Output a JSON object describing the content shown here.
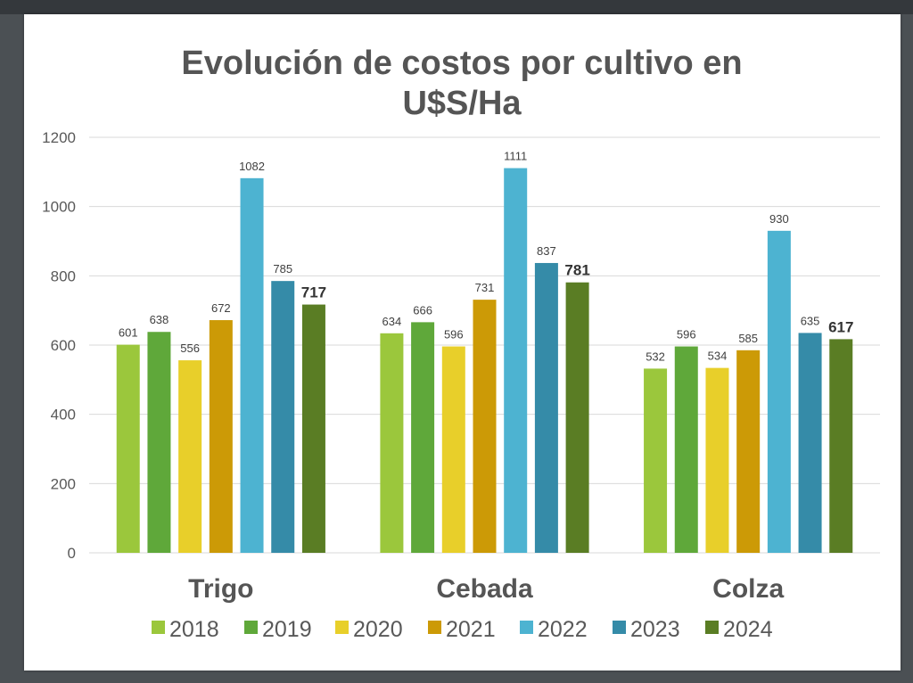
{
  "chart_data": {
    "type": "bar",
    "title": [
      "Evolución de costos por cultivo en",
      "U$S/Ha"
    ],
    "xlabel": "",
    "ylabel": "",
    "ylim": [
      0,
      1200
    ],
    "yticks": [
      0,
      200,
      400,
      600,
      800,
      1000,
      1200
    ],
    "grid": true,
    "legend_position": "bottom",
    "categories": [
      "Trigo",
      "Cebada",
      "Colza"
    ],
    "series": [
      {
        "name": "2018",
        "color": "#9bc73c",
        "values": [
          601,
          634,
          532
        ],
        "bold_labels": false
      },
      {
        "name": "2019",
        "color": "#5fa83a",
        "values": [
          638,
          666,
          596
        ],
        "bold_labels": false
      },
      {
        "name": "2020",
        "color": "#e8cf2a",
        "values": [
          556,
          596,
          534
        ],
        "bold_labels": false
      },
      {
        "name": "2021",
        "color": "#cc9a06",
        "values": [
          672,
          731,
          585
        ],
        "bold_labels": false
      },
      {
        "name": "2022",
        "color": "#4db3d1",
        "values": [
          1082,
          1111,
          930
        ],
        "bold_labels": false
      },
      {
        "name": "2023",
        "color": "#358ba8",
        "values": [
          785,
          837,
          635
        ],
        "bold_labels": false
      },
      {
        "name": "2024",
        "color": "#5a7d24",
        "values": [
          717,
          781,
          617
        ],
        "bold_labels": true
      }
    ]
  }
}
